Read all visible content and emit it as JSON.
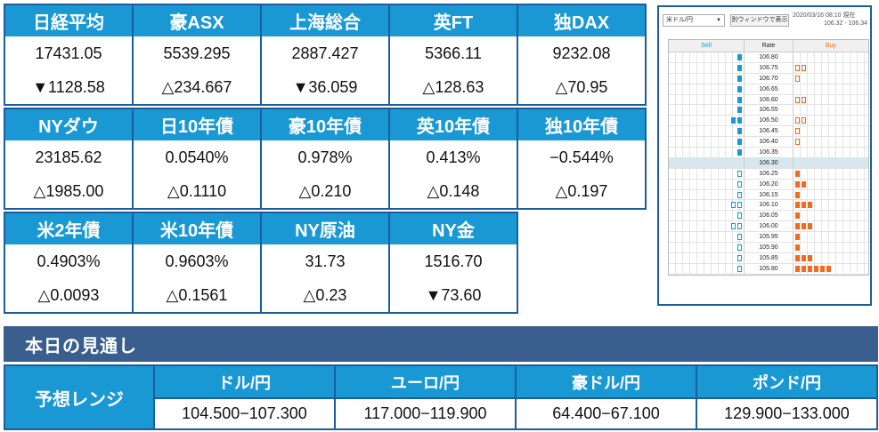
{
  "markets": {
    "row1": [
      {
        "name": "日経平均",
        "value": "17431.05",
        "change": "▼1128.58"
      },
      {
        "name": "豪ASX",
        "value": "5539.295",
        "change": "△234.667"
      },
      {
        "name": "上海総合",
        "value": "2887.427",
        "change": "▼36.059"
      },
      {
        "name": "英FT",
        "value": "5366.11",
        "change": "△128.63"
      },
      {
        "name": "独DAX",
        "value": "9232.08",
        "change": "△70.95"
      }
    ],
    "row2": [
      {
        "name": "NYダウ",
        "value": "23185.62",
        "change": "△1985.00"
      },
      {
        "name": "日10年債",
        "value": "0.0540%",
        "change": "△0.1110"
      },
      {
        "name": "豪10年債",
        "value": "0.978%",
        "change": "△0.210"
      },
      {
        "name": "英10年債",
        "value": "0.413%",
        "change": "△0.148"
      },
      {
        "name": "独10年債",
        "value": "−0.544%",
        "change": "△0.197"
      }
    ],
    "row3": [
      {
        "name": "米2年債",
        "value": "0.4903%",
        "change": "△0.0093"
      },
      {
        "name": "米10年債",
        "value": "0.9603%",
        "change": "△0.1561"
      },
      {
        "name": "NY原油",
        "value": "31.73",
        "change": "△0.23"
      },
      {
        "name": "NY金",
        "value": "1516.70",
        "change": "▼73.60"
      }
    ]
  },
  "orderbook": {
    "pair": "米ドル/円",
    "new_window_label": "別ウィンドウで表示",
    "timestamp": "2020/03/16 08:10 現在",
    "range": "106.32 - 106.34",
    "sell_label": "Sell",
    "rate_label": "Rate",
    "buy_label": "Buy",
    "sell_color": "#1998d4",
    "buy_color": "#f26b1d",
    "rows": [
      {
        "rate": "106.80",
        "sell": [
          1,
          0
        ],
        "buy": [
          0,
          0
        ]
      },
      {
        "rate": "106.75",
        "sell": [
          1,
          0
        ],
        "buy": [
          0,
          2
        ]
      },
      {
        "rate": "106.70",
        "sell": [
          1,
          0
        ],
        "buy": [
          0,
          1
        ]
      },
      {
        "rate": "106.65",
        "sell": [
          1,
          0
        ],
        "buy": [
          0,
          0
        ]
      },
      {
        "rate": "106.60",
        "sell": [
          1,
          0
        ],
        "buy": [
          0,
          2
        ]
      },
      {
        "rate": "106.55",
        "sell": [
          1,
          0
        ],
        "buy": [
          0,
          0
        ]
      },
      {
        "rate": "106.50",
        "sell": [
          2,
          0
        ],
        "buy": [
          0,
          2
        ]
      },
      {
        "rate": "106.45",
        "sell": [
          1,
          0
        ],
        "buy": [
          0,
          1
        ]
      },
      {
        "rate": "106.40",
        "sell": [
          1,
          0
        ],
        "buy": [
          0,
          1
        ]
      },
      {
        "rate": "106.35",
        "sell": [
          1,
          0
        ],
        "buy": [
          0,
          0
        ]
      },
      {
        "rate": "106.30",
        "sell": [
          0,
          0
        ],
        "buy": [
          0,
          0
        ],
        "current": true
      },
      {
        "rate": "106.25",
        "sell": [
          0,
          1
        ],
        "buy": [
          1,
          0
        ]
      },
      {
        "rate": "106.20",
        "sell": [
          0,
          1
        ],
        "buy": [
          2,
          0
        ]
      },
      {
        "rate": "106.15",
        "sell": [
          0,
          1
        ],
        "buy": [
          1,
          0
        ]
      },
      {
        "rate": "106.10",
        "sell": [
          0,
          2
        ],
        "buy": [
          3,
          0
        ]
      },
      {
        "rate": "106.05",
        "sell": [
          0,
          1
        ],
        "buy": [
          1,
          0
        ]
      },
      {
        "rate": "106.00",
        "sell": [
          0,
          2
        ],
        "buy": [
          3,
          0
        ]
      },
      {
        "rate": "105.95",
        "sell": [
          0,
          1
        ],
        "buy": [
          1,
          0
        ]
      },
      {
        "rate": "105.90",
        "sell": [
          0,
          1
        ],
        "buy": [
          1,
          0
        ]
      },
      {
        "rate": "105.85",
        "sell": [
          0,
          1
        ],
        "buy": [
          3,
          0
        ]
      },
      {
        "rate": "105.80",
        "sell": [
          0,
          1
        ],
        "buy": [
          6,
          0
        ]
      }
    ]
  },
  "forecast": {
    "title": "本日の見通し",
    "range_label": "予想レンジ",
    "pairs": [
      {
        "name": "ドル/円",
        "range": "104.500−107.300"
      },
      {
        "name": "ユーロ/円",
        "range": "117.000−119.900"
      },
      {
        "name": "豪ドル/円",
        "range": "64.400−67.100"
      },
      {
        "name": "ポンド/円",
        "range": "129.900−133.000"
      }
    ]
  }
}
